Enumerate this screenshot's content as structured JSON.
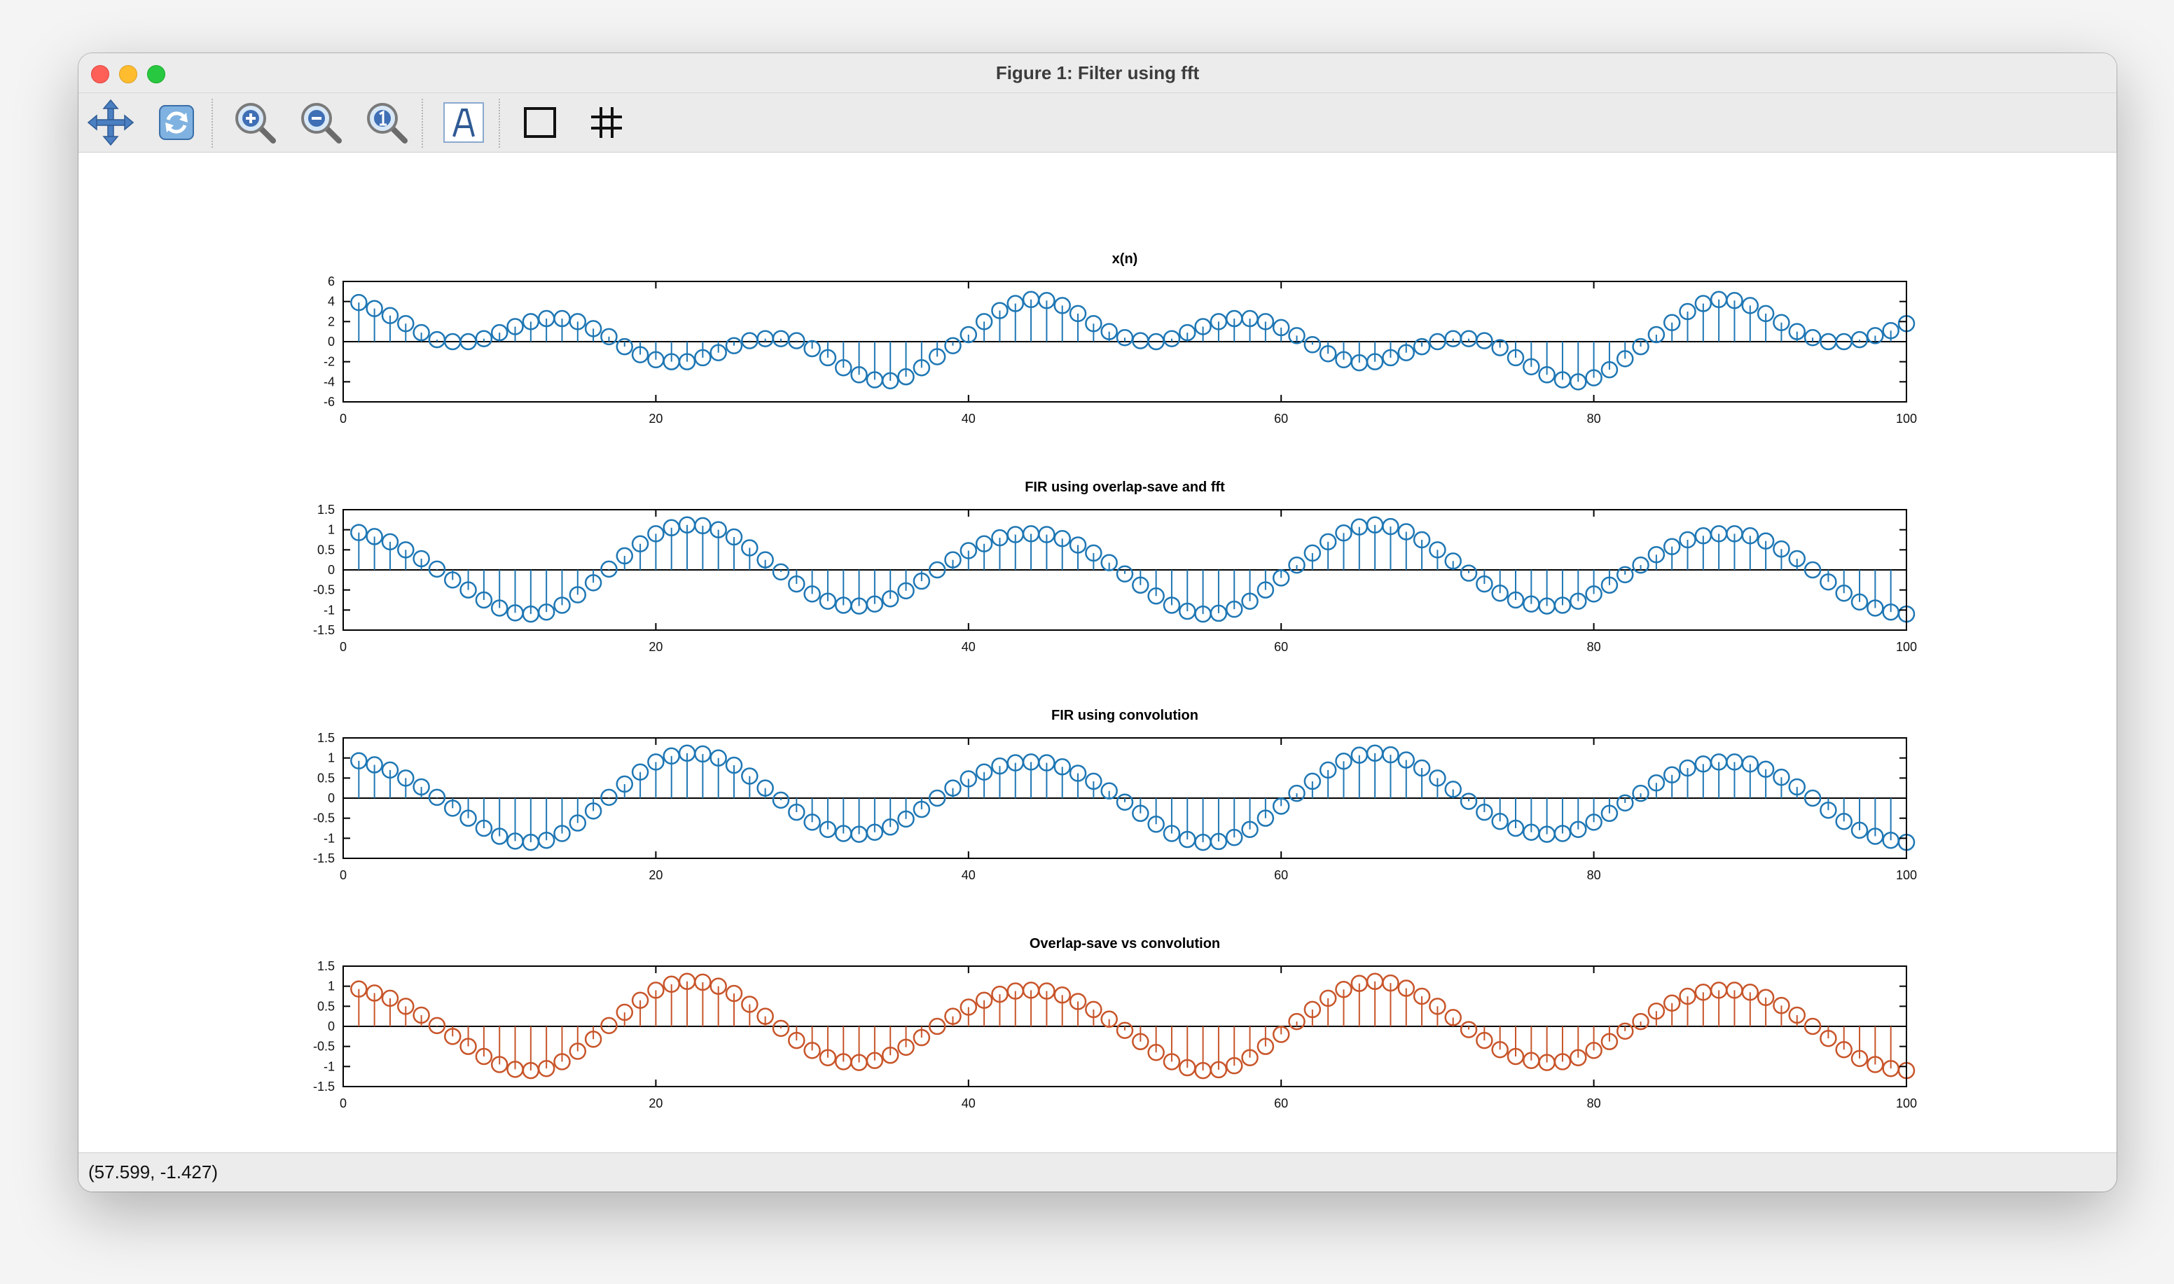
{
  "window": {
    "title": "Figure 1: Filter using fft"
  },
  "toolbar": {
    "tools": [
      {
        "icon": "pan-icon"
      },
      {
        "icon": "rotate-icon"
      },
      {
        "icon": "zoom-in-icon"
      },
      {
        "icon": "zoom-out-icon"
      },
      {
        "icon": "zoom-reset-icon"
      },
      {
        "icon": "text-icon"
      },
      {
        "icon": "box-icon"
      },
      {
        "icon": "grid-icon"
      }
    ]
  },
  "statusbar": {
    "coords": "(57.599, -1.427)"
  },
  "chart_data": [
    {
      "type": "stem",
      "title": "x(n)",
      "color": "#1f77b4",
      "xlim": [
        0,
        100
      ],
      "ylim": [
        -6,
        6
      ],
      "xticks": [
        "0",
        "20",
        "40",
        "60",
        "80",
        "100"
      ],
      "yticks": [
        "6",
        "4",
        "2",
        "0",
        "-2",
        "-4",
        "-6"
      ],
      "x": [
        1,
        2,
        3,
        4,
        5,
        6,
        7,
        8,
        9,
        10,
        11,
        12,
        13,
        14,
        15,
        16,
        17,
        18,
        19,
        20,
        21,
        22,
        23,
        24,
        25,
        26,
        27,
        28,
        29,
        30,
        31,
        32,
        33,
        34,
        35,
        36,
        37,
        38,
        39,
        40,
        41,
        42,
        43,
        44,
        45,
        46,
        47,
        48,
        49,
        50,
        51,
        52,
        53,
        54,
        55,
        56,
        57,
        58,
        59,
        60,
        61,
        62,
        63,
        64,
        65,
        66,
        67,
        68,
        69,
        70,
        71,
        72,
        73,
        74,
        75,
        76,
        77,
        78,
        79,
        80,
        81,
        82,
        83,
        84,
        85,
        86,
        87,
        88,
        89,
        90,
        91,
        92,
        93,
        94,
        95,
        96,
        97,
        98,
        99,
        100
      ],
      "values": [
        3.9,
        3.3,
        2.6,
        1.8,
        0.9,
        0.2,
        0.0,
        0.0,
        0.3,
        0.9,
        1.5,
        2.0,
        2.3,
        2.3,
        2.0,
        1.3,
        0.5,
        -0.5,
        -1.3,
        -1.8,
        -2.0,
        -2.0,
        -1.6,
        -1.1,
        -0.4,
        0.1,
        0.3,
        0.3,
        0.1,
        -0.7,
        -1.6,
        -2.6,
        -3.3,
        -3.8,
        -3.9,
        -3.5,
        -2.6,
        -1.5,
        -0.4,
        0.7,
        2.0,
        3.1,
        3.8,
        4.2,
        4.1,
        3.6,
        2.8,
        1.8,
        1.0,
        0.4,
        0.1,
        0.0,
        0.3,
        0.9,
        1.5,
        2.0,
        2.3,
        2.3,
        2.0,
        1.4,
        0.6,
        -0.3,
        -1.2,
        -1.8,
        -2.1,
        -2.0,
        -1.6,
        -1.1,
        -0.5,
        0.0,
        0.3,
        0.3,
        0.1,
        -0.6,
        -1.6,
        -2.5,
        -3.3,
        -3.8,
        -4.0,
        -3.6,
        -2.8,
        -1.7,
        -0.5,
        0.7,
        1.9,
        3.0,
        3.8,
        4.2,
        4.1,
        3.6,
        2.8,
        1.9,
        1.0,
        0.4,
        0.0,
        0.0,
        0.2,
        0.6,
        1.1,
        1.8
      ]
    },
    {
      "type": "stem",
      "title": "FIR using overlap-save and fft",
      "color": "#1f77b4",
      "xlim": [
        0,
        100
      ],
      "ylim": [
        -1.5,
        1.5
      ],
      "xticks": [
        "0",
        "20",
        "40",
        "60",
        "80",
        "100"
      ],
      "yticks": [
        "1.5",
        "1",
        "0.5",
        "0",
        "-0.5",
        "-1",
        "-1.5"
      ],
      "x": [
        1,
        2,
        3,
        4,
        5,
        6,
        7,
        8,
        9,
        10,
        11,
        12,
        13,
        14,
        15,
        16,
        17,
        18,
        19,
        20,
        21,
        22,
        23,
        24,
        25,
        26,
        27,
        28,
        29,
        30,
        31,
        32,
        33,
        34,
        35,
        36,
        37,
        38,
        39,
        40,
        41,
        42,
        43,
        44,
        45,
        46,
        47,
        48,
        49,
        50,
        51,
        52,
        53,
        54,
        55,
        56,
        57,
        58,
        59,
        60,
        61,
        62,
        63,
        64,
        65,
        66,
        67,
        68,
        69,
        70,
        71,
        72,
        73,
        74,
        75,
        76,
        77,
        78,
        79,
        80,
        81,
        82,
        83,
        84,
        85,
        86,
        87,
        88,
        89,
        90,
        91,
        92,
        93,
        94,
        95,
        96,
        97,
        98,
        99,
        100
      ],
      "values": [
        0.93,
        0.83,
        0.7,
        0.5,
        0.28,
        0.02,
        -0.25,
        -0.5,
        -0.75,
        -0.95,
        -1.07,
        -1.1,
        -1.05,
        -0.88,
        -0.62,
        -0.32,
        0.02,
        0.35,
        0.65,
        0.9,
        1.05,
        1.12,
        1.1,
        1.0,
        0.82,
        0.55,
        0.25,
        -0.05,
        -0.35,
        -0.6,
        -0.78,
        -0.88,
        -0.9,
        -0.85,
        -0.72,
        -0.52,
        -0.28,
        0.0,
        0.25,
        0.48,
        0.65,
        0.8,
        0.88,
        0.9,
        0.88,
        0.78,
        0.62,
        0.42,
        0.18,
        -0.1,
        -0.38,
        -0.65,
        -0.88,
        -1.03,
        -1.1,
        -1.08,
        -0.98,
        -0.78,
        -0.5,
        -0.2,
        0.12,
        0.42,
        0.7,
        0.92,
        1.07,
        1.12,
        1.08,
        0.95,
        0.75,
        0.5,
        0.22,
        -0.08,
        -0.35,
        -0.58,
        -0.75,
        -0.85,
        -0.9,
        -0.88,
        -0.78,
        -0.6,
        -0.38,
        -0.12,
        0.12,
        0.38,
        0.58,
        0.75,
        0.85,
        0.9,
        0.9,
        0.85,
        0.72,
        0.52,
        0.28,
        0.0,
        -0.3,
        -0.58,
        -0.8,
        -0.95,
        -1.05,
        -1.1
      ]
    },
    {
      "type": "stem",
      "title": "FIR using convolution",
      "color": "#1f77b4",
      "xlim": [
        0,
        100
      ],
      "ylim": [
        -1.5,
        1.5
      ],
      "xticks": [
        "0",
        "20",
        "40",
        "60",
        "80",
        "100"
      ],
      "yticks": [
        "1.5",
        "1",
        "0.5",
        "0",
        "-0.5",
        "-1",
        "-1.5"
      ],
      "x": [
        1,
        2,
        3,
        4,
        5,
        6,
        7,
        8,
        9,
        10,
        11,
        12,
        13,
        14,
        15,
        16,
        17,
        18,
        19,
        20,
        21,
        22,
        23,
        24,
        25,
        26,
        27,
        28,
        29,
        30,
        31,
        32,
        33,
        34,
        35,
        36,
        37,
        38,
        39,
        40,
        41,
        42,
        43,
        44,
        45,
        46,
        47,
        48,
        49,
        50,
        51,
        52,
        53,
        54,
        55,
        56,
        57,
        58,
        59,
        60,
        61,
        62,
        63,
        64,
        65,
        66,
        67,
        68,
        69,
        70,
        71,
        72,
        73,
        74,
        75,
        76,
        77,
        78,
        79,
        80,
        81,
        82,
        83,
        84,
        85,
        86,
        87,
        88,
        89,
        90,
        91,
        92,
        93,
        94,
        95,
        96,
        97,
        98,
        99,
        100
      ],
      "values": [
        0.93,
        0.83,
        0.7,
        0.5,
        0.28,
        0.02,
        -0.25,
        -0.5,
        -0.75,
        -0.95,
        -1.07,
        -1.1,
        -1.05,
        -0.88,
        -0.62,
        -0.32,
        0.02,
        0.35,
        0.65,
        0.9,
        1.05,
        1.12,
        1.1,
        1.0,
        0.82,
        0.55,
        0.25,
        -0.05,
        -0.35,
        -0.6,
        -0.78,
        -0.88,
        -0.9,
        -0.85,
        -0.72,
        -0.52,
        -0.28,
        0.0,
        0.25,
        0.48,
        0.65,
        0.8,
        0.88,
        0.9,
        0.88,
        0.78,
        0.62,
        0.42,
        0.18,
        -0.1,
        -0.38,
        -0.65,
        -0.88,
        -1.03,
        -1.1,
        -1.08,
        -0.98,
        -0.78,
        -0.5,
        -0.2,
        0.12,
        0.42,
        0.7,
        0.92,
        1.07,
        1.12,
        1.08,
        0.95,
        0.75,
        0.5,
        0.22,
        -0.08,
        -0.35,
        -0.58,
        -0.75,
        -0.85,
        -0.9,
        -0.88,
        -0.78,
        -0.6,
        -0.38,
        -0.12,
        0.12,
        0.38,
        0.58,
        0.75,
        0.85,
        0.9,
        0.9,
        0.85,
        0.72,
        0.52,
        0.28,
        0.0,
        -0.3,
        -0.58,
        -0.8,
        -0.95,
        -1.05,
        -1.1
      ]
    },
    {
      "type": "stem",
      "title": "Overlap-save vs convolution",
      "color": "#c8552a",
      "xlim": [
        0,
        100
      ],
      "ylim": [
        -1.5,
        1.5
      ],
      "xticks": [
        "0",
        "20",
        "40",
        "60",
        "80",
        "100"
      ],
      "yticks": [
        "1.5",
        "1",
        "0.5",
        "0",
        "-0.5",
        "-1",
        "-1.5"
      ],
      "x": [
        1,
        2,
        3,
        4,
        5,
        6,
        7,
        8,
        9,
        10,
        11,
        12,
        13,
        14,
        15,
        16,
        17,
        18,
        19,
        20,
        21,
        22,
        23,
        24,
        25,
        26,
        27,
        28,
        29,
        30,
        31,
        32,
        33,
        34,
        35,
        36,
        37,
        38,
        39,
        40,
        41,
        42,
        43,
        44,
        45,
        46,
        47,
        48,
        49,
        50,
        51,
        52,
        53,
        54,
        55,
        56,
        57,
        58,
        59,
        60,
        61,
        62,
        63,
        64,
        65,
        66,
        67,
        68,
        69,
        70,
        71,
        72,
        73,
        74,
        75,
        76,
        77,
        78,
        79,
        80,
        81,
        82,
        83,
        84,
        85,
        86,
        87,
        88,
        89,
        90,
        91,
        92,
        93,
        94,
        95,
        96,
        97,
        98,
        99,
        100
      ],
      "values": [
        0.93,
        0.83,
        0.7,
        0.5,
        0.28,
        0.02,
        -0.25,
        -0.5,
        -0.75,
        -0.95,
        -1.07,
        -1.1,
        -1.05,
        -0.88,
        -0.62,
        -0.32,
        0.02,
        0.35,
        0.65,
        0.9,
        1.05,
        1.12,
        1.1,
        1.0,
        0.82,
        0.55,
        0.25,
        -0.05,
        -0.35,
        -0.6,
        -0.78,
        -0.88,
        -0.9,
        -0.85,
        -0.72,
        -0.52,
        -0.28,
        0.0,
        0.25,
        0.48,
        0.65,
        0.8,
        0.88,
        0.9,
        0.88,
        0.78,
        0.62,
        0.42,
        0.18,
        -0.1,
        -0.38,
        -0.65,
        -0.88,
        -1.03,
        -1.1,
        -1.08,
        -0.98,
        -0.78,
        -0.5,
        -0.2,
        0.12,
        0.42,
        0.7,
        0.92,
        1.07,
        1.12,
        1.08,
        0.95,
        0.75,
        0.5,
        0.22,
        -0.08,
        -0.35,
        -0.58,
        -0.75,
        -0.85,
        -0.9,
        -0.88,
        -0.78,
        -0.6,
        -0.38,
        -0.12,
        0.12,
        0.38,
        0.58,
        0.75,
        0.85,
        0.9,
        0.9,
        0.85,
        0.72,
        0.52,
        0.28,
        0.0,
        -0.3,
        -0.58,
        -0.8,
        -0.95,
        -1.05,
        -1.1
      ]
    }
  ]
}
